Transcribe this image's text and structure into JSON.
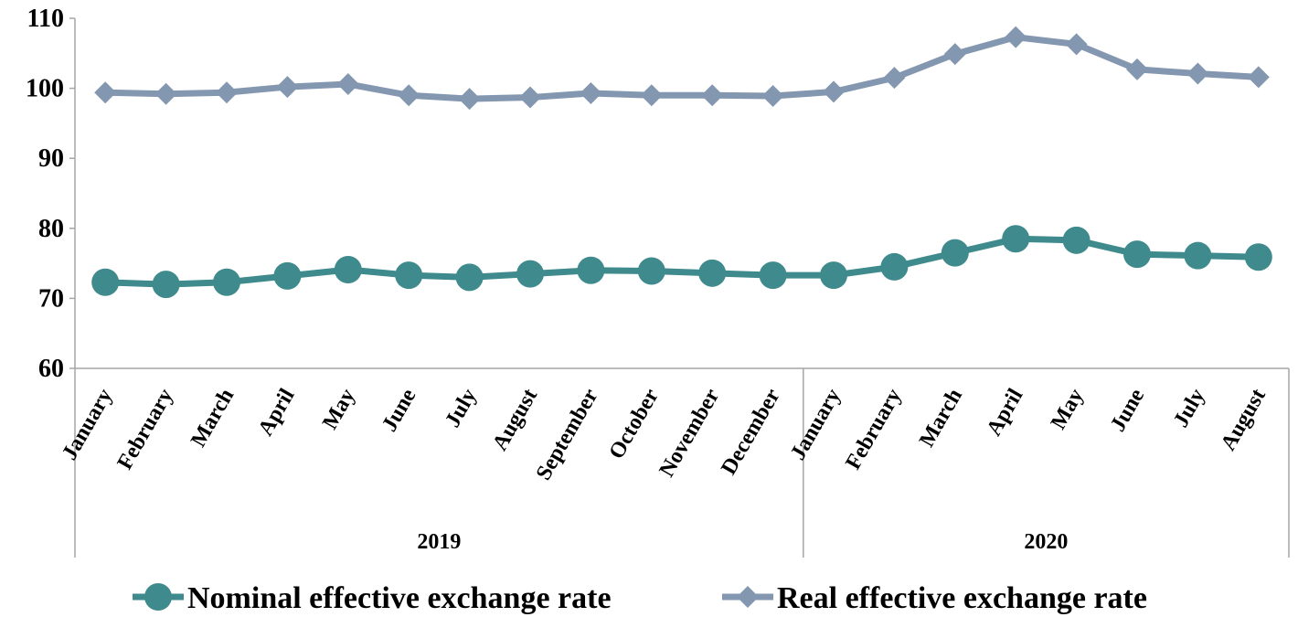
{
  "chart_data": {
    "type": "line",
    "title": "",
    "xlabel": "",
    "ylabel": "",
    "ylim": [
      60,
      110
    ],
    "yticks": [
      60,
      70,
      80,
      90,
      100,
      110
    ],
    "grid": false,
    "legend_position": "bottom",
    "groups": [
      {
        "label": "2019",
        "count": 12
      },
      {
        "label": "2020",
        "count": 8
      }
    ],
    "categories": [
      "January",
      "February",
      "March",
      "April",
      "May",
      "June",
      "July",
      "August",
      "September",
      "October",
      "November",
      "December",
      "January",
      "February",
      "March",
      "April",
      "May",
      "June",
      "July",
      "August"
    ],
    "series": [
      {
        "name": "Nominal effective exchange rate",
        "color": "#3f8a8c",
        "marker": "circle",
        "values": [
          72.3,
          72.0,
          72.3,
          73.2,
          74.1,
          73.3,
          73.0,
          73.5,
          74.0,
          73.9,
          73.6,
          73.3,
          73.3,
          74.5,
          76.5,
          78.5,
          78.3,
          76.3,
          76.1,
          75.9
        ]
      },
      {
        "name": "Real effective exchange rate",
        "color": "#8497b0",
        "marker": "diamond",
        "values": [
          99.4,
          99.2,
          99.4,
          100.2,
          100.6,
          99.0,
          98.5,
          98.7,
          99.3,
          99.0,
          99.0,
          98.9,
          99.5,
          101.5,
          104.9,
          107.3,
          106.3,
          102.7,
          102.1,
          101.6
        ]
      }
    ]
  }
}
